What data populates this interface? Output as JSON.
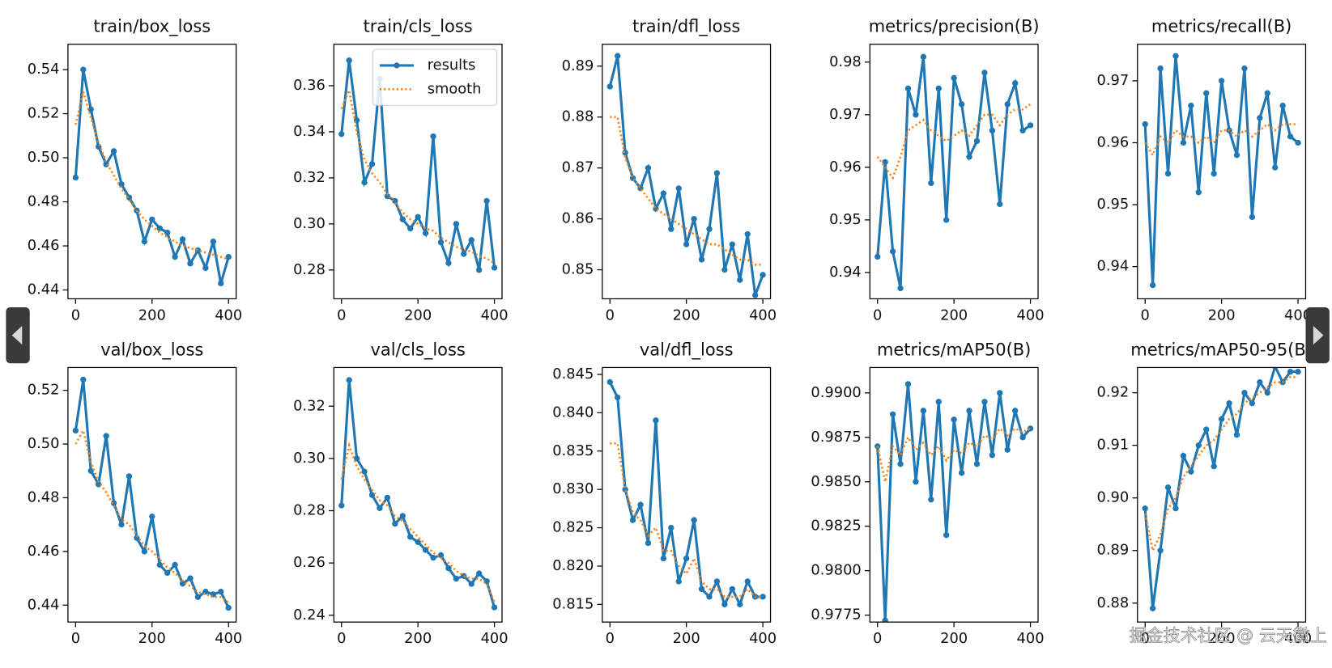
{
  "watermark": "掘金技术社区 @ 云天徽上",
  "chart_data": [
    {
      "type": "line",
      "title": "train/box_loss",
      "x": [
        0,
        20,
        40,
        60,
        80,
        100,
        120,
        140,
        160,
        180,
        200,
        220,
        240,
        260,
        280,
        300,
        320,
        340,
        360,
        380,
        400
      ],
      "series": [
        {
          "color": "#1f77b4",
          "style": "solid-markers",
          "values": [
            0.491,
            0.54,
            0.522,
            0.505,
            0.497,
            0.503,
            0.488,
            0.482,
            0.476,
            0.462,
            0.472,
            0.468,
            0.466,
            0.455,
            0.463,
            0.452,
            0.458,
            0.45,
            0.462,
            0.443,
            0.455
          ]
        },
        {
          "color": "#ff7f0e",
          "style": "dotted",
          "values": [
            0.515,
            0.53,
            0.518,
            0.507,
            0.498,
            0.492,
            0.486,
            0.481,
            0.476,
            0.472,
            0.469,
            0.466,
            0.464,
            0.462,
            0.46,
            0.459,
            0.458,
            0.457,
            0.456,
            0.455,
            0.454
          ]
        }
      ],
      "xlim": [
        -20,
        420
      ],
      "xticks": [
        0,
        200,
        400
      ],
      "ylim": [
        0.436,
        0.5515
      ],
      "yticks": [
        0.44,
        0.46,
        0.48,
        {
          "value": 0.5,
          "label": "0.50"
        },
        0.52,
        0.54
      ]
    },
    {
      "type": "line",
      "title": "train/cls_loss",
      "x": [
        0,
        20,
        40,
        60,
        80,
        100,
        120,
        140,
        160,
        180,
        200,
        220,
        240,
        260,
        280,
        300,
        320,
        340,
        360,
        380,
        400
      ],
      "series": [
        {
          "name": "results",
          "color": "#1f77b4",
          "style": "solid-markers",
          "values": [
            0.339,
            0.371,
            0.345,
            0.318,
            0.326,
            0.363,
            0.312,
            0.31,
            0.302,
            0.298,
            0.303,
            0.296,
            0.338,
            0.292,
            0.283,
            0.3,
            0.287,
            0.293,
            0.28,
            0.31,
            0.281
          ]
        },
        {
          "name": "smooth",
          "color": "#ff7f0e",
          "style": "dotted",
          "values": [
            0.35,
            0.358,
            0.34,
            0.328,
            0.322,
            0.318,
            0.313,
            0.309,
            0.305,
            0.302,
            0.3,
            0.298,
            0.297,
            0.294,
            0.292,
            0.29,
            0.289,
            0.288,
            0.286,
            0.285,
            0.283
          ]
        }
      ],
      "legend": "upper right",
      "xlim": [
        -20,
        420
      ],
      "xticks": [
        0,
        200,
        400
      ],
      "ylim": [
        0.2675,
        0.378
      ],
      "yticks": [
        0.28,
        {
          "value": 0.3,
          "label": "0.30"
        },
        0.32,
        0.34,
        0.36
      ]
    },
    {
      "type": "line",
      "title": "train/dfl_loss",
      "x": [
        0,
        20,
        40,
        60,
        80,
        100,
        120,
        140,
        160,
        180,
        200,
        220,
        240,
        260,
        280,
        300,
        320,
        340,
        360,
        380,
        400
      ],
      "series": [
        {
          "color": "#1f77b4",
          "style": "solid-markers",
          "values": [
            0.886,
            0.892,
            0.873,
            0.868,
            0.866,
            0.87,
            0.862,
            0.865,
            0.858,
            0.866,
            0.855,
            0.86,
            0.852,
            0.858,
            0.869,
            0.85,
            0.855,
            0.848,
            0.857,
            0.845,
            0.849
          ]
        },
        {
          "color": "#ff7f0e",
          "style": "dotted",
          "values": [
            0.88,
            0.88,
            0.872,
            0.868,
            0.866,
            0.864,
            0.862,
            0.861,
            0.86,
            0.859,
            0.858,
            0.857,
            0.856,
            0.855,
            0.855,
            0.854,
            0.853,
            0.852,
            0.852,
            0.851,
            0.851
          ]
        }
      ],
      "xlim": [
        -20,
        420
      ],
      "xticks": [
        0,
        200,
        400
      ],
      "ylim": [
        0.8443,
        0.8943
      ],
      "yticks": [
        0.85,
        0.86,
        0.87,
        0.88,
        0.89
      ]
    },
    {
      "type": "line",
      "title": "metrics/precision(B)",
      "x": [
        0,
        20,
        40,
        60,
        80,
        100,
        120,
        140,
        160,
        180,
        200,
        220,
        240,
        260,
        280,
        300,
        320,
        340,
        360,
        380,
        400
      ],
      "series": [
        {
          "color": "#1f77b4",
          "style": "solid-markers",
          "values": [
            0.943,
            0.961,
            0.944,
            0.937,
            0.975,
            0.97,
            0.981,
            0.957,
            0.975,
            0.95,
            0.977,
            0.972,
            0.962,
            0.965,
            0.978,
            0.967,
            0.953,
            0.972,
            0.976,
            0.967,
            0.968
          ]
        },
        {
          "color": "#ff7f0e",
          "style": "dotted",
          "values": [
            0.962,
            0.96,
            0.958,
            0.962,
            0.967,
            0.968,
            0.969,
            0.967,
            0.966,
            0.965,
            0.966,
            0.967,
            0.966,
            0.968,
            0.97,
            0.97,
            0.968,
            0.97,
            0.971,
            0.971,
            0.972
          ]
        }
      ],
      "xlim": [
        -20,
        420
      ],
      "xticks": [
        0,
        200,
        400
      ],
      "ylim": [
        0.935,
        0.9834
      ],
      "yticks": [
        0.94,
        0.95,
        0.96,
        0.97,
        0.98
      ]
    },
    {
      "type": "line",
      "title": "metrics/recall(B)",
      "x": [
        0,
        20,
        40,
        60,
        80,
        100,
        120,
        140,
        160,
        180,
        200,
        220,
        240,
        260,
        280,
        300,
        320,
        340,
        360,
        380,
        400
      ],
      "series": [
        {
          "color": "#1f77b4",
          "style": "solid-markers",
          "values": [
            0.963,
            0.937,
            0.972,
            0.955,
            0.974,
            0.96,
            0.966,
            0.952,
            0.968,
            0.955,
            0.97,
            0.962,
            0.958,
            0.972,
            0.948,
            0.964,
            0.968,
            0.956,
            0.966,
            0.961,
            0.96
          ]
        },
        {
          "color": "#ff7f0e",
          "style": "dotted",
          "values": [
            0.96,
            0.958,
            0.961,
            0.96,
            0.962,
            0.961,
            0.961,
            0.96,
            0.961,
            0.96,
            0.962,
            0.962,
            0.961,
            0.962,
            0.961,
            0.962,
            0.963,
            0.962,
            0.963,
            0.963,
            0.963
          ]
        }
      ],
      "xlim": [
        -20,
        420
      ],
      "xticks": [
        0,
        200,
        400
      ],
      "ylim": [
        0.9348,
        0.9759
      ],
      "yticks": [
        0.94,
        0.95,
        0.96,
        0.97
      ]
    },
    {
      "type": "line",
      "title": "val/box_loss",
      "x": [
        0,
        20,
        40,
        60,
        80,
        100,
        120,
        140,
        160,
        180,
        200,
        220,
        240,
        260,
        280,
        300,
        320,
        340,
        360,
        380,
        400
      ],
      "series": [
        {
          "color": "#1f77b4",
          "style": "solid-markers",
          "values": [
            0.505,
            0.524,
            0.49,
            0.485,
            0.503,
            0.478,
            0.47,
            0.488,
            0.465,
            0.46,
            0.473,
            0.455,
            0.452,
            0.455,
            0.448,
            0.45,
            0.443,
            0.445,
            0.444,
            0.445,
            0.439
          ]
        },
        {
          "color": "#ff7f0e",
          "style": "dotted",
          "values": [
            0.5,
            0.505,
            0.493,
            0.486,
            0.482,
            0.477,
            0.472,
            0.47,
            0.466,
            0.462,
            0.46,
            0.457,
            0.454,
            0.452,
            0.449,
            0.447,
            0.445,
            0.444,
            0.443,
            0.443,
            0.441
          ]
        }
      ],
      "xlim": [
        -20,
        420
      ],
      "xticks": [
        0,
        200,
        400
      ],
      "ylim": [
        0.4337,
        0.5285
      ],
      "yticks": [
        0.44,
        0.46,
        0.48,
        {
          "value": 0.5,
          "label": "0.50"
        },
        0.52
      ]
    },
    {
      "type": "line",
      "title": "val/cls_loss",
      "x": [
        0,
        20,
        40,
        60,
        80,
        100,
        120,
        140,
        160,
        180,
        200,
        220,
        240,
        260,
        280,
        300,
        320,
        340,
        360,
        380,
        400
      ],
      "series": [
        {
          "color": "#1f77b4",
          "style": "solid-markers",
          "values": [
            0.282,
            0.33,
            0.3,
            0.295,
            0.286,
            0.281,
            0.285,
            0.275,
            0.278,
            0.27,
            0.268,
            0.265,
            0.262,
            0.263,
            0.258,
            0.254,
            0.255,
            0.252,
            0.256,
            0.253,
            0.243
          ]
        },
        {
          "color": "#ff7f0e",
          "style": "dotted",
          "values": [
            0.292,
            0.305,
            0.297,
            0.292,
            0.288,
            0.284,
            0.282,
            0.278,
            0.276,
            0.273,
            0.27,
            0.267,
            0.264,
            0.262,
            0.26,
            0.257,
            0.255,
            0.254,
            0.254,
            0.252,
            0.245
          ]
        }
      ],
      "xlim": [
        -20,
        420
      ],
      "xticks": [
        0,
        200,
        400
      ],
      "ylim": [
        0.2374,
        0.3348
      ],
      "yticks": [
        0.24,
        0.26,
        0.28,
        {
          "value": 0.3,
          "label": "0.30"
        },
        0.32
      ]
    },
    {
      "type": "line",
      "title": "val/dfl_loss",
      "x": [
        0,
        20,
        40,
        60,
        80,
        100,
        120,
        140,
        160,
        180,
        200,
        220,
        240,
        260,
        280,
        300,
        320,
        340,
        360,
        380,
        400
      ],
      "series": [
        {
          "color": "#1f77b4",
          "style": "solid-markers",
          "values": [
            0.844,
            0.842,
            0.83,
            0.826,
            0.828,
            0.823,
            0.839,
            0.821,
            0.825,
            0.818,
            0.821,
            0.826,
            0.817,
            0.816,
            0.818,
            0.815,
            0.817,
            0.815,
            0.818,
            0.816,
            0.816
          ]
        },
        {
          "color": "#ff7f0e",
          "style": "dotted",
          "values": [
            0.836,
            0.836,
            0.83,
            0.827,
            0.826,
            0.824,
            0.825,
            0.822,
            0.822,
            0.82,
            0.819,
            0.821,
            0.818,
            0.817,
            0.817,
            0.816,
            0.816,
            0.816,
            0.817,
            0.816,
            0.816
          ]
        }
      ],
      "xlim": [
        -20,
        420
      ],
      "xticks": [
        0,
        200,
        400
      ],
      "ylim": [
        0.8127,
        0.8459
      ],
      "yticks": [
        0.815,
        {
          "value": 0.82,
          "label": "0.820"
        },
        0.825,
        {
          "value": 0.83,
          "label": "0.830"
        },
        0.835,
        {
          "value": 0.84,
          "label": "0.840"
        },
        0.845
      ]
    },
    {
      "type": "line",
      "title": "metrics/mAP50(B)",
      "x": [
        0,
        20,
        40,
        60,
        80,
        100,
        120,
        140,
        160,
        180,
        200,
        220,
        240,
        260,
        280,
        300,
        320,
        340,
        360,
        380,
        400
      ],
      "series": [
        {
          "color": "#1f77b4",
          "style": "solid-markers",
          "values": [
            0.987,
            0.9772,
            0.9888,
            0.986,
            0.9905,
            0.985,
            0.989,
            0.984,
            0.9895,
            0.982,
            0.9885,
            0.9855,
            0.989,
            0.986,
            0.9895,
            0.9865,
            0.99,
            0.9868,
            0.989,
            0.9875,
            0.988
          ]
        },
        {
          "color": "#ff7f0e",
          "style": "dotted",
          "values": [
            0.987,
            0.985,
            0.987,
            0.9865,
            0.9875,
            0.9868,
            0.9872,
            0.9865,
            0.987,
            0.9862,
            0.9868,
            0.9866,
            0.9872,
            0.987,
            0.9876,
            0.9874,
            0.988,
            0.9876,
            0.988,
            0.9878,
            0.988
          ]
        }
      ],
      "xlim": [
        -20,
        420
      ],
      "xticks": [
        0,
        200,
        400
      ],
      "ylim": [
        0.97711,
        0.99143
      ],
      "yticks": [
        0.9775,
        {
          "value": 0.98,
          "label": "0.9800"
        },
        0.9825,
        {
          "value": 0.985,
          "label": "0.9850"
        },
        0.9875,
        {
          "value": 0.99,
          "label": "0.9900"
        }
      ]
    },
    {
      "type": "line",
      "title": "metrics/mAP50-95(B)",
      "x": [
        0,
        20,
        40,
        60,
        80,
        100,
        120,
        140,
        160,
        180,
        200,
        220,
        240,
        260,
        280,
        300,
        320,
        340,
        360,
        380,
        400
      ],
      "series": [
        {
          "color": "#1f77b4",
          "style": "solid-markers",
          "values": [
            0.898,
            0.879,
            0.89,
            0.902,
            0.898,
            0.908,
            0.905,
            0.91,
            0.913,
            0.906,
            0.915,
            0.918,
            0.912,
            0.92,
            0.918,
            0.922,
            0.92,
            0.925,
            0.922,
            0.924,
            0.924
          ]
        },
        {
          "color": "#ff7f0e",
          "style": "dotted",
          "values": [
            0.897,
            0.89,
            0.893,
            0.898,
            0.9,
            0.904,
            0.906,
            0.908,
            0.91,
            0.911,
            0.913,
            0.915,
            0.916,
            0.918,
            0.919,
            0.92,
            0.921,
            0.922,
            0.922,
            0.923,
            0.923
          ]
        }
      ],
      "xlim": [
        -20,
        420
      ],
      "xticks": [
        0,
        200,
        400
      ],
      "ylim": [
        0.8764,
        0.9248
      ],
      "yticks": [
        0.88,
        0.89,
        {
          "value": 0.9,
          "label": "0.90"
        },
        0.91,
        0.92
      ]
    }
  ]
}
